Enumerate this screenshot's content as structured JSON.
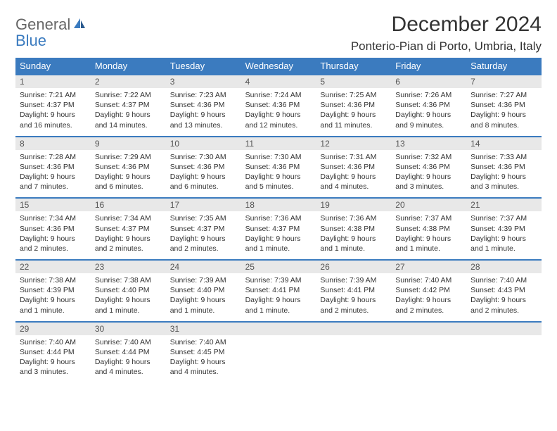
{
  "logo": {
    "general": "General",
    "blue": "Blue"
  },
  "title": "December 2024",
  "location": "Ponterio-Pian di Porto, Umbria, Italy",
  "colors": {
    "header_bg": "#3b7bbf",
    "header_text": "#ffffff",
    "daynum_bg": "#e8e8e8",
    "border": "#3b7bbf",
    "text": "#333333",
    "logo_gray": "#666666",
    "logo_blue": "#3b7bbf"
  },
  "day_names": [
    "Sunday",
    "Monday",
    "Tuesday",
    "Wednesday",
    "Thursday",
    "Friday",
    "Saturday"
  ],
  "weeks": [
    [
      {
        "n": "1",
        "sunrise": "7:21 AM",
        "sunset": "4:37 PM",
        "daylight": "9 hours and 16 minutes."
      },
      {
        "n": "2",
        "sunrise": "7:22 AM",
        "sunset": "4:37 PM",
        "daylight": "9 hours and 14 minutes."
      },
      {
        "n": "3",
        "sunrise": "7:23 AM",
        "sunset": "4:36 PM",
        "daylight": "9 hours and 13 minutes."
      },
      {
        "n": "4",
        "sunrise": "7:24 AM",
        "sunset": "4:36 PM",
        "daylight": "9 hours and 12 minutes."
      },
      {
        "n": "5",
        "sunrise": "7:25 AM",
        "sunset": "4:36 PM",
        "daylight": "9 hours and 11 minutes."
      },
      {
        "n": "6",
        "sunrise": "7:26 AM",
        "sunset": "4:36 PM",
        "daylight": "9 hours and 9 minutes."
      },
      {
        "n": "7",
        "sunrise": "7:27 AM",
        "sunset": "4:36 PM",
        "daylight": "9 hours and 8 minutes."
      }
    ],
    [
      {
        "n": "8",
        "sunrise": "7:28 AM",
        "sunset": "4:36 PM",
        "daylight": "9 hours and 7 minutes."
      },
      {
        "n": "9",
        "sunrise": "7:29 AM",
        "sunset": "4:36 PM",
        "daylight": "9 hours and 6 minutes."
      },
      {
        "n": "10",
        "sunrise": "7:30 AM",
        "sunset": "4:36 PM",
        "daylight": "9 hours and 6 minutes."
      },
      {
        "n": "11",
        "sunrise": "7:30 AM",
        "sunset": "4:36 PM",
        "daylight": "9 hours and 5 minutes."
      },
      {
        "n": "12",
        "sunrise": "7:31 AM",
        "sunset": "4:36 PM",
        "daylight": "9 hours and 4 minutes."
      },
      {
        "n": "13",
        "sunrise": "7:32 AM",
        "sunset": "4:36 PM",
        "daylight": "9 hours and 3 minutes."
      },
      {
        "n": "14",
        "sunrise": "7:33 AM",
        "sunset": "4:36 PM",
        "daylight": "9 hours and 3 minutes."
      }
    ],
    [
      {
        "n": "15",
        "sunrise": "7:34 AM",
        "sunset": "4:36 PM",
        "daylight": "9 hours and 2 minutes."
      },
      {
        "n": "16",
        "sunrise": "7:34 AM",
        "sunset": "4:37 PM",
        "daylight": "9 hours and 2 minutes."
      },
      {
        "n": "17",
        "sunrise": "7:35 AM",
        "sunset": "4:37 PM",
        "daylight": "9 hours and 2 minutes."
      },
      {
        "n": "18",
        "sunrise": "7:36 AM",
        "sunset": "4:37 PM",
        "daylight": "9 hours and 1 minute."
      },
      {
        "n": "19",
        "sunrise": "7:36 AM",
        "sunset": "4:38 PM",
        "daylight": "9 hours and 1 minute."
      },
      {
        "n": "20",
        "sunrise": "7:37 AM",
        "sunset": "4:38 PM",
        "daylight": "9 hours and 1 minute."
      },
      {
        "n": "21",
        "sunrise": "7:37 AM",
        "sunset": "4:39 PM",
        "daylight": "9 hours and 1 minute."
      }
    ],
    [
      {
        "n": "22",
        "sunrise": "7:38 AM",
        "sunset": "4:39 PM",
        "daylight": "9 hours and 1 minute."
      },
      {
        "n": "23",
        "sunrise": "7:38 AM",
        "sunset": "4:40 PM",
        "daylight": "9 hours and 1 minute."
      },
      {
        "n": "24",
        "sunrise": "7:39 AM",
        "sunset": "4:40 PM",
        "daylight": "9 hours and 1 minute."
      },
      {
        "n": "25",
        "sunrise": "7:39 AM",
        "sunset": "4:41 PM",
        "daylight": "9 hours and 1 minute."
      },
      {
        "n": "26",
        "sunrise": "7:39 AM",
        "sunset": "4:41 PM",
        "daylight": "9 hours and 2 minutes."
      },
      {
        "n": "27",
        "sunrise": "7:40 AM",
        "sunset": "4:42 PM",
        "daylight": "9 hours and 2 minutes."
      },
      {
        "n": "28",
        "sunrise": "7:40 AM",
        "sunset": "4:43 PM",
        "daylight": "9 hours and 2 minutes."
      }
    ],
    [
      {
        "n": "29",
        "sunrise": "7:40 AM",
        "sunset": "4:44 PM",
        "daylight": "9 hours and 3 minutes."
      },
      {
        "n": "30",
        "sunrise": "7:40 AM",
        "sunset": "4:44 PM",
        "daylight": "9 hours and 4 minutes."
      },
      {
        "n": "31",
        "sunrise": "7:40 AM",
        "sunset": "4:45 PM",
        "daylight": "9 hours and 4 minutes."
      },
      null,
      null,
      null,
      null
    ]
  ],
  "labels": {
    "sunrise": "Sunrise: ",
    "sunset": "Sunset: ",
    "daylight": "Daylight: "
  }
}
